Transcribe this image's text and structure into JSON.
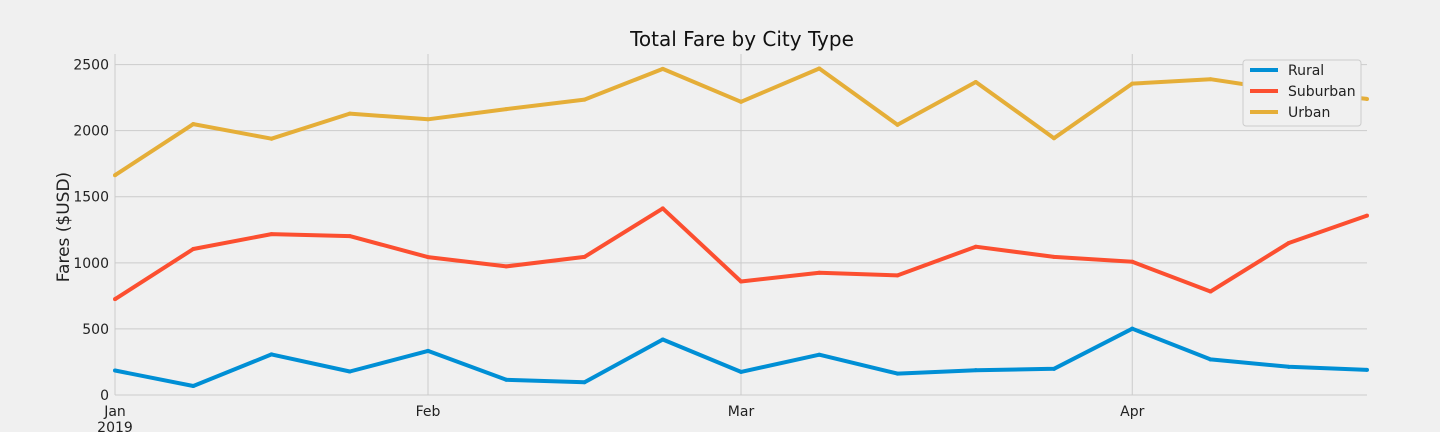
{
  "chart_data": {
    "type": "line",
    "title": "Total Fare by City Type",
    "xlabel": "",
    "ylabel": "Fares ($USD)",
    "ylim": [
      0,
      2580
    ],
    "y_ticks": [
      0,
      500,
      1000,
      1500,
      2000,
      2500
    ],
    "x": [
      "2019-01-06",
      "2019-01-13",
      "2019-01-20",
      "2019-01-27",
      "2019-02-03",
      "2019-02-10",
      "2019-02-17",
      "2019-02-24",
      "2019-03-03",
      "2019-03-10",
      "2019-03-17",
      "2019-03-24",
      "2019-03-31",
      "2019-04-07",
      "2019-04-14",
      "2019-04-21",
      "2019-04-28"
    ],
    "x_ticks": [
      {
        "label": "Jan",
        "sublabel": "2019",
        "at": 0
      },
      {
        "label": "Feb",
        "at": 4
      },
      {
        "label": "Mar",
        "at": 8
      },
      {
        "label": "Apr",
        "at": 13
      }
    ],
    "xlim": [
      0,
      16
    ],
    "grid": true,
    "legend_position": "top-right",
    "series": [
      {
        "name": "Rural",
        "color": "#008fd5",
        "values": [
          185,
          68,
          307,
          178,
          334,
          115,
          96,
          420,
          175,
          305,
          162,
          188,
          198,
          502,
          269,
          213,
          190
        ]
      },
      {
        "name": "Suburban",
        "color": "#fc4f30",
        "values": [
          725,
          1105,
          1217,
          1202,
          1043,
          973,
          1045,
          1412,
          859,
          925,
          905,
          1122,
          1045,
          1008,
          783,
          1150,
          1357
        ]
      },
      {
        "name": "Urban",
        "color": "#e5ae38",
        "values": [
          1663,
          2050,
          1939,
          2129,
          2086,
          2163,
          2235,
          2467,
          2218,
          2470,
          2044,
          2368,
          1943,
          2356,
          2389,
          2300,
          2240
        ]
      }
    ]
  }
}
